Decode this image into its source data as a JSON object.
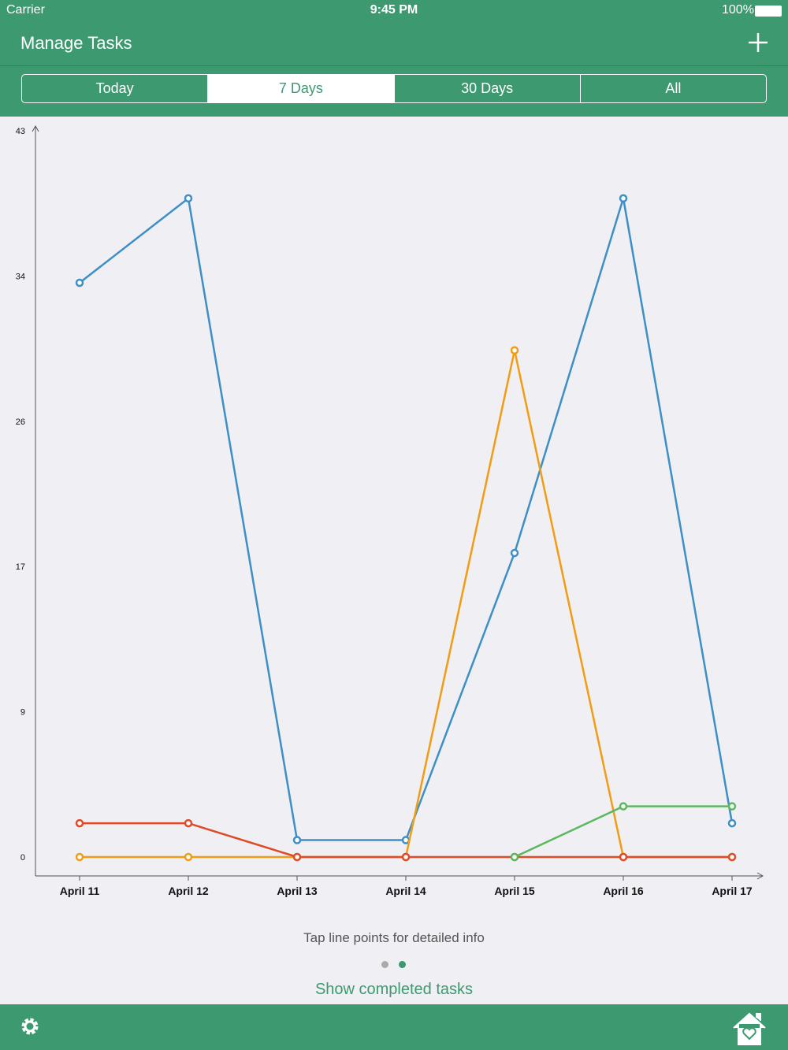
{
  "status_bar": {
    "carrier": "Carrier",
    "time": "9:45 PM",
    "battery": "100%"
  },
  "nav": {
    "title": "Manage Tasks"
  },
  "segments": {
    "items": [
      "Today",
      "7 Days",
      "30 Days",
      "All"
    ],
    "selected": 1
  },
  "chart_data": {
    "type": "line",
    "categories": [
      "April 11",
      "April 12",
      "April 13",
      "April 14",
      "April 15",
      "April 16",
      "April 17"
    ],
    "series": [
      {
        "color": "#3d8fc5",
        "values": [
          34,
          39,
          1,
          1,
          18,
          39,
          2
        ]
      },
      {
        "color": "#f39c12",
        "values": [
          0,
          0,
          0,
          0,
          30,
          0,
          0
        ]
      },
      {
        "color": "#e04a26",
        "values": [
          2,
          2,
          0,
          0,
          0,
          0,
          0
        ]
      },
      {
        "color": "#5cb85c",
        "values": [
          null,
          null,
          null,
          null,
          0,
          3,
          3
        ]
      }
    ],
    "ylim": [
      0,
      43
    ],
    "yticks": [
      0,
      {
        "value": 8.6,
        "label": "9"
      },
      {
        "value": 17.2,
        "label": "17"
      },
      {
        "value": 25.8,
        "label": "26"
      },
      {
        "value": 34.4,
        "label": "34"
      },
      43
    ]
  },
  "hint": "Tap line points for detailed info",
  "link": "Show completed tasks"
}
